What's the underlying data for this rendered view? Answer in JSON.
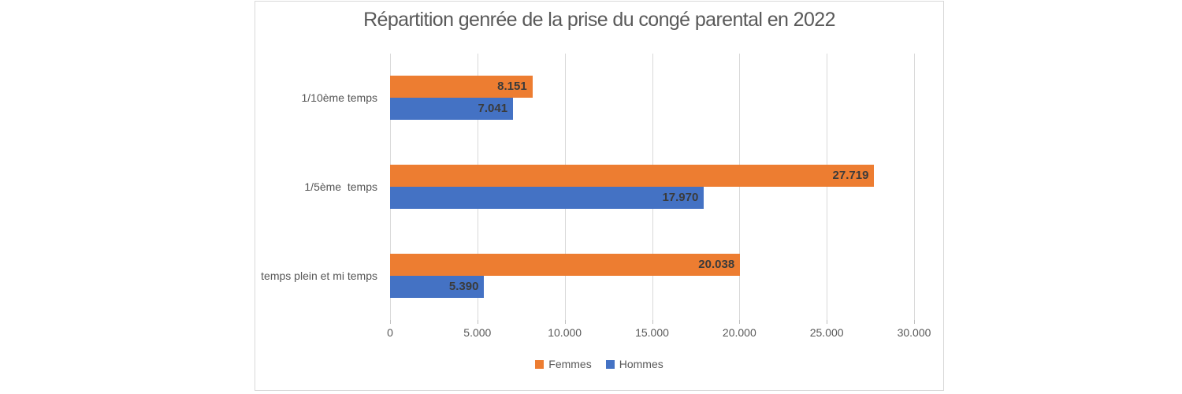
{
  "chart_data": {
    "type": "bar",
    "orientation": "horizontal",
    "title": "Répartition genrée de la prise du congé parental en 2022",
    "categories": [
      "1/10ème temps",
      "1/5ème  temps",
      "temps plein et mi temps"
    ],
    "series": [
      {
        "name": "Femmes",
        "color": "#ED7D31",
        "values": [
          8151,
          27719,
          20038
        ],
        "labels": [
          "8.151",
          "27.719",
          "20.038"
        ]
      },
      {
        "name": "Hommes",
        "color": "#4472C4",
        "values": [
          7041,
          17970,
          5390
        ],
        "labels": [
          "7.041",
          "17.970",
          "5.390"
        ]
      }
    ],
    "x_axis": {
      "min": 0,
      "max": 30000,
      "tick_values": [
        0,
        5000,
        10000,
        15000,
        20000,
        25000,
        30000
      ],
      "tick_labels": [
        "0",
        "5.000",
        "10.000",
        "15.000",
        "20.000",
        "25.000",
        "30.000"
      ]
    },
    "legend": {
      "position": "bottom",
      "entries": [
        "Femmes",
        "Hommes"
      ]
    },
    "grid": true,
    "data_labels": "inside-end",
    "colors": {
      "grid": "#D9D9D9",
      "tick": "#BFBFBF",
      "chart_border": "#D8D8D8",
      "title_text": "#595959",
      "axis_text": "#595959",
      "category_text": "#555555",
      "data_label_text": "#3B3B3B"
    }
  }
}
